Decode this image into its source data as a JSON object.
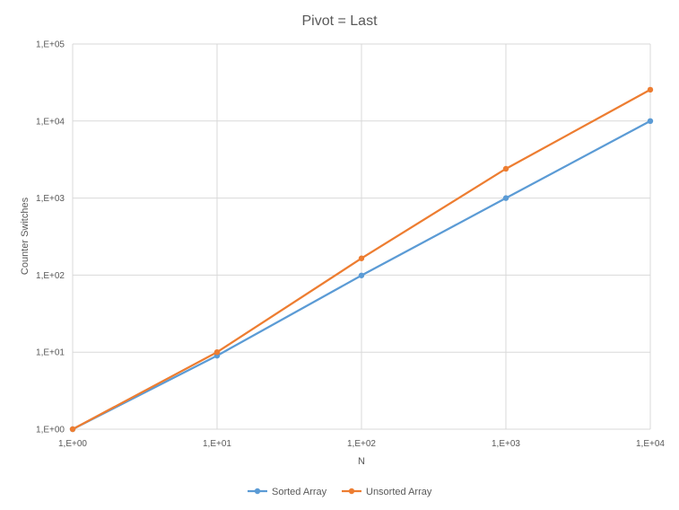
{
  "chart_data": {
    "type": "line",
    "title": "Pivot = Last",
    "xlabel": "N",
    "ylabel": "Counter Switches",
    "x_scale": "log",
    "y_scale": "log",
    "xlim": [
      1,
      10000
    ],
    "ylim": [
      1,
      100000
    ],
    "x_ticks": [
      "1,E+00",
      "1,E+01",
      "1,E+02",
      "1,E+03",
      "1,E+04"
    ],
    "y_ticks": [
      "1,E+00",
      "1,E+01",
      "1,E+02",
      "1,E+03",
      "1,E+04",
      "1,E+05"
    ],
    "x": [
      1,
      10,
      100,
      1000,
      10000
    ],
    "series": [
      {
        "name": "Sorted Array",
        "color": "#5b9bd5",
        "values": [
          1,
          9,
          99,
          999,
          9999
        ]
      },
      {
        "name": "Unsorted Array",
        "color": "#ed7d31",
        "values": [
          1,
          10,
          165,
          2400,
          25500
        ]
      }
    ],
    "grid": true,
    "legend_position": "bottom",
    "marker": "circle"
  }
}
